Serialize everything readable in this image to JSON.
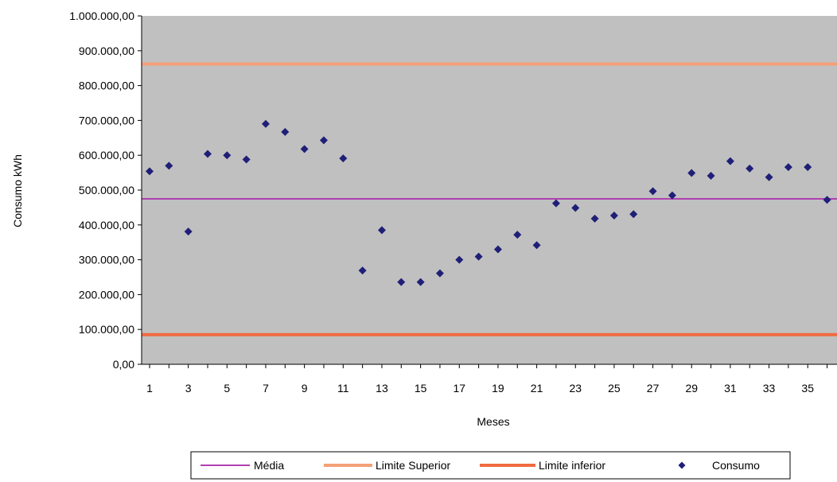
{
  "chart_data": {
    "type": "scatter",
    "xlabel": "Meses",
    "ylabel": "Consumo kWh",
    "xlim": [
      1,
      36
    ],
    "ylim": [
      0,
      1000000
    ],
    "x_ticks": [
      "1",
      "3",
      "5",
      "7",
      "9",
      "11",
      "13",
      "15",
      "17",
      "19",
      "21",
      "23",
      "25",
      "27",
      "29",
      "31",
      "33",
      "35"
    ],
    "y_ticks": [
      "0,00",
      "100.000,00",
      "200.000,00",
      "300.000,00",
      "400.000,00",
      "500.000,00",
      "600.000,00",
      "700.000,00",
      "800.000,00",
      "900.000,00",
      "1.000.000,00"
    ],
    "grid": false,
    "plot_background": "#c0c0c0",
    "legend_position": "bottom",
    "reference_lines": [
      {
        "name": "Média",
        "value": 475000,
        "color": "#b040b0"
      },
      {
        "name": "Limite Superior",
        "value": 862000,
        "color": "#f4a078"
      },
      {
        "name": "Limite inferior",
        "value": 85000,
        "color": "#f06a40"
      }
    ],
    "series": [
      {
        "name": "Consumo",
        "color": "#1f1f78",
        "marker": "diamond",
        "x": [
          1,
          2,
          3,
          4,
          5,
          6,
          7,
          8,
          9,
          10,
          11,
          12,
          13,
          14,
          15,
          16,
          17,
          18,
          19,
          20,
          21,
          22,
          23,
          24,
          25,
          26,
          27,
          28,
          29,
          30,
          31,
          32,
          33,
          34,
          35,
          36
        ],
        "y": [
          554000,
          570000,
          381000,
          604000,
          600000,
          588000,
          690000,
          667000,
          618000,
          643000,
          591000,
          269000,
          385000,
          236000,
          236000,
          261000,
          300000,
          309000,
          330000,
          372000,
          342000,
          462000,
          449000,
          418000,
          427000,
          431000,
          497000,
          485000,
          549000,
          541000,
          583000,
          562000,
          537000,
          566000,
          566000,
          472000
        ]
      }
    ]
  },
  "legend": {
    "items": [
      {
        "label": "Média",
        "kind": "line",
        "color": "#b040b0"
      },
      {
        "label": "Limite Superior",
        "kind": "line",
        "color": "#f4a078"
      },
      {
        "label": "Limite inferior",
        "kind": "line",
        "color": "#f06a40"
      },
      {
        "label": "Consumo",
        "kind": "diamond",
        "color": "#1f1f78"
      }
    ]
  }
}
